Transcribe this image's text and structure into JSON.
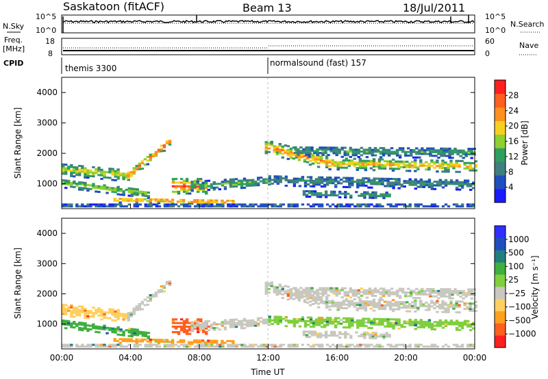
{
  "header": {
    "station": "Saskatoon (fitACF)",
    "beam": "Beam 13",
    "date": "18/Jul/2011"
  },
  "panel_nsky": {
    "left_label": "N.Sky",
    "right_label": "N.Search",
    "left_ticks": [
      "10^5",
      "10^0"
    ],
    "right_ticks": [
      "10^5",
      "10^0"
    ]
  },
  "panel_freq": {
    "left_label_1": "Freq.",
    "left_label_2": "[MHz]",
    "right_label": "Nave",
    "left_ticks": [
      "18",
      "8"
    ],
    "right_ticks": [
      "60",
      "0"
    ]
  },
  "cpid": {
    "label": "CPID",
    "program_1": "themis 3300",
    "program_2": "normalsound (fast) 157"
  },
  "colors": {
    "power_scale": [
      "#1a1aff",
      "#1f4fbf",
      "#3f7f7f",
      "#2f9f5f",
      "#8fcf2f",
      "#f7cf1f",
      "#ff8f1f",
      "#ff5f1f",
      "#ff1f1f"
    ],
    "velocity_scale": [
      "#ff1f1f",
      "#ff5f1f",
      "#ff9f1f",
      "#ffcf5f",
      "#c8c8c0",
      "#7fcf3f",
      "#3faf3f",
      "#1f7f7f",
      "#1f4fbf",
      "#2f2fff"
    ]
  },
  "chart_data": [
    {
      "type": "heatmap",
      "name": "power",
      "ylabel": "Slant Range [km]",
      "ylim": [
        180,
        4500
      ],
      "yticks": [
        1000,
        2000,
        3000,
        4000
      ],
      "xlim": [
        0,
        24
      ],
      "colorbar_label": "Power [dB]",
      "colorbar_ticks": [
        4,
        8,
        12,
        16,
        20,
        24,
        28
      ],
      "colorbar_range": [
        0,
        32
      ]
    },
    {
      "type": "heatmap",
      "name": "velocity",
      "ylabel": "Slant Range [km]",
      "ylim": [
        180,
        4500
      ],
      "yticks": [
        1000,
        2000,
        3000,
        4000
      ],
      "xlim": [
        0,
        24
      ],
      "xticks": [
        "00:00",
        "04:00",
        "08:00",
        "12:00",
        "16:00",
        "20:00",
        "00:00"
      ],
      "xlabel": "Time UT",
      "colorbar_label": "Velocity [m s⁻¹]",
      "colorbar_ticks": [
        "1000",
        "500",
        "100",
        "25",
        "−25",
        "−100",
        "−500",
        "−1000"
      ]
    }
  ]
}
